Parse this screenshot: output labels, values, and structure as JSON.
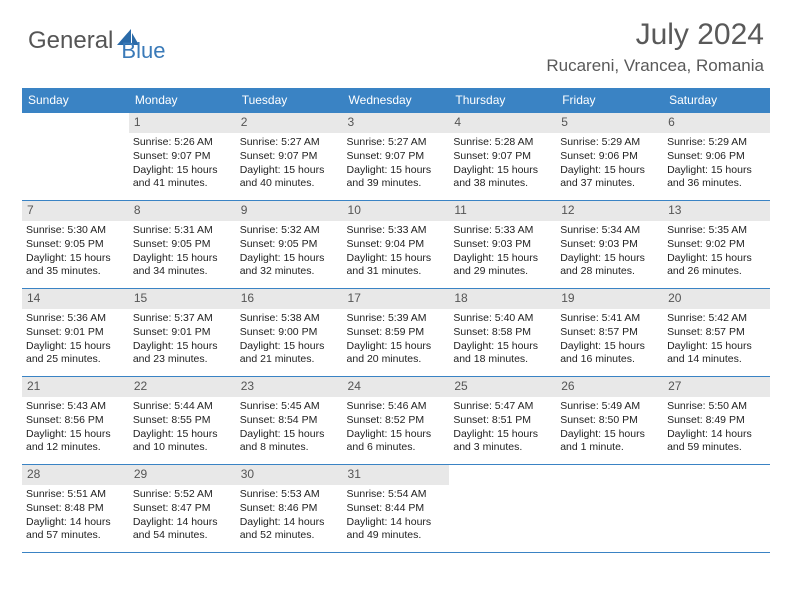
{
  "logo": {
    "text1": "General",
    "text2": "Blue"
  },
  "title": "July 2024",
  "location": "Rucareni, Vrancea, Romania",
  "colors": {
    "header_bg": "#3a83c4",
    "header_text": "#ffffff",
    "border": "#3a83c4",
    "daynum_bg": "#e8e8e8",
    "daynum_text": "#555555",
    "body_text": "#222222",
    "title_text": "#595959"
  },
  "weekdays": [
    "Sunday",
    "Monday",
    "Tuesday",
    "Wednesday",
    "Thursday",
    "Friday",
    "Saturday"
  ],
  "weeks": [
    [
      {
        "day": "",
        "lines": []
      },
      {
        "day": "1",
        "lines": [
          "Sunrise: 5:26 AM",
          "Sunset: 9:07 PM",
          "Daylight: 15 hours and 41 minutes."
        ]
      },
      {
        "day": "2",
        "lines": [
          "Sunrise: 5:27 AM",
          "Sunset: 9:07 PM",
          "Daylight: 15 hours and 40 minutes."
        ]
      },
      {
        "day": "3",
        "lines": [
          "Sunrise: 5:27 AM",
          "Sunset: 9:07 PM",
          "Daylight: 15 hours and 39 minutes."
        ]
      },
      {
        "day": "4",
        "lines": [
          "Sunrise: 5:28 AM",
          "Sunset: 9:07 PM",
          "Daylight: 15 hours and 38 minutes."
        ]
      },
      {
        "day": "5",
        "lines": [
          "Sunrise: 5:29 AM",
          "Sunset: 9:06 PM",
          "Daylight: 15 hours and 37 minutes."
        ]
      },
      {
        "day": "6",
        "lines": [
          "Sunrise: 5:29 AM",
          "Sunset: 9:06 PM",
          "Daylight: 15 hours and 36 minutes."
        ]
      }
    ],
    [
      {
        "day": "7",
        "lines": [
          "Sunrise: 5:30 AM",
          "Sunset: 9:05 PM",
          "Daylight: 15 hours and 35 minutes."
        ]
      },
      {
        "day": "8",
        "lines": [
          "Sunrise: 5:31 AM",
          "Sunset: 9:05 PM",
          "Daylight: 15 hours and 34 minutes."
        ]
      },
      {
        "day": "9",
        "lines": [
          "Sunrise: 5:32 AM",
          "Sunset: 9:05 PM",
          "Daylight: 15 hours and 32 minutes."
        ]
      },
      {
        "day": "10",
        "lines": [
          "Sunrise: 5:33 AM",
          "Sunset: 9:04 PM",
          "Daylight: 15 hours and 31 minutes."
        ]
      },
      {
        "day": "11",
        "lines": [
          "Sunrise: 5:33 AM",
          "Sunset: 9:03 PM",
          "Daylight: 15 hours and 29 minutes."
        ]
      },
      {
        "day": "12",
        "lines": [
          "Sunrise: 5:34 AM",
          "Sunset: 9:03 PM",
          "Daylight: 15 hours and 28 minutes."
        ]
      },
      {
        "day": "13",
        "lines": [
          "Sunrise: 5:35 AM",
          "Sunset: 9:02 PM",
          "Daylight: 15 hours and 26 minutes."
        ]
      }
    ],
    [
      {
        "day": "14",
        "lines": [
          "Sunrise: 5:36 AM",
          "Sunset: 9:01 PM",
          "Daylight: 15 hours and 25 minutes."
        ]
      },
      {
        "day": "15",
        "lines": [
          "Sunrise: 5:37 AM",
          "Sunset: 9:01 PM",
          "Daylight: 15 hours and 23 minutes."
        ]
      },
      {
        "day": "16",
        "lines": [
          "Sunrise: 5:38 AM",
          "Sunset: 9:00 PM",
          "Daylight: 15 hours and 21 minutes."
        ]
      },
      {
        "day": "17",
        "lines": [
          "Sunrise: 5:39 AM",
          "Sunset: 8:59 PM",
          "Daylight: 15 hours and 20 minutes."
        ]
      },
      {
        "day": "18",
        "lines": [
          "Sunrise: 5:40 AM",
          "Sunset: 8:58 PM",
          "Daylight: 15 hours and 18 minutes."
        ]
      },
      {
        "day": "19",
        "lines": [
          "Sunrise: 5:41 AM",
          "Sunset: 8:57 PM",
          "Daylight: 15 hours and 16 minutes."
        ]
      },
      {
        "day": "20",
        "lines": [
          "Sunrise: 5:42 AM",
          "Sunset: 8:57 PM",
          "Daylight: 15 hours and 14 minutes."
        ]
      }
    ],
    [
      {
        "day": "21",
        "lines": [
          "Sunrise: 5:43 AM",
          "Sunset: 8:56 PM",
          "Daylight: 15 hours and 12 minutes."
        ]
      },
      {
        "day": "22",
        "lines": [
          "Sunrise: 5:44 AM",
          "Sunset: 8:55 PM",
          "Daylight: 15 hours and 10 minutes."
        ]
      },
      {
        "day": "23",
        "lines": [
          "Sunrise: 5:45 AM",
          "Sunset: 8:54 PM",
          "Daylight: 15 hours and 8 minutes."
        ]
      },
      {
        "day": "24",
        "lines": [
          "Sunrise: 5:46 AM",
          "Sunset: 8:52 PM",
          "Daylight: 15 hours and 6 minutes."
        ]
      },
      {
        "day": "25",
        "lines": [
          "Sunrise: 5:47 AM",
          "Sunset: 8:51 PM",
          "Daylight: 15 hours and 3 minutes."
        ]
      },
      {
        "day": "26",
        "lines": [
          "Sunrise: 5:49 AM",
          "Sunset: 8:50 PM",
          "Daylight: 15 hours and 1 minute."
        ]
      },
      {
        "day": "27",
        "lines": [
          "Sunrise: 5:50 AM",
          "Sunset: 8:49 PM",
          "Daylight: 14 hours and 59 minutes."
        ]
      }
    ],
    [
      {
        "day": "28",
        "lines": [
          "Sunrise: 5:51 AM",
          "Sunset: 8:48 PM",
          "Daylight: 14 hours and 57 minutes."
        ]
      },
      {
        "day": "29",
        "lines": [
          "Sunrise: 5:52 AM",
          "Sunset: 8:47 PM",
          "Daylight: 14 hours and 54 minutes."
        ]
      },
      {
        "day": "30",
        "lines": [
          "Sunrise: 5:53 AM",
          "Sunset: 8:46 PM",
          "Daylight: 14 hours and 52 minutes."
        ]
      },
      {
        "day": "31",
        "lines": [
          "Sunrise: 5:54 AM",
          "Sunset: 8:44 PM",
          "Daylight: 14 hours and 49 minutes."
        ]
      },
      {
        "day": "",
        "lines": []
      },
      {
        "day": "",
        "lines": []
      },
      {
        "day": "",
        "lines": []
      }
    ]
  ]
}
